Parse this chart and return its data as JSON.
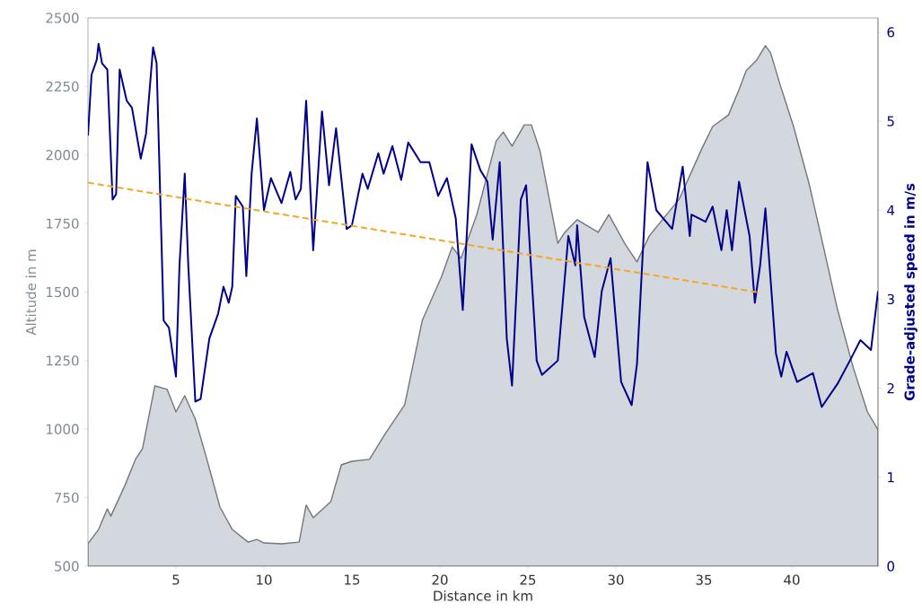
{
  "chart_data": {
    "type": "area",
    "xlabel": "Distance in km",
    "ylabel": "Altitude in m",
    "y2label": "Grade-adjusted speed in m/s",
    "xlim": [
      0,
      44.9
    ],
    "xticks": [
      5,
      10,
      15,
      20,
      25,
      30,
      35,
      40
    ],
    "ylim": [
      500,
      2500
    ],
    "yticks": [
      500,
      750,
      1000,
      1250,
      1500,
      1750,
      2000,
      2250,
      2500
    ],
    "y2lim": [
      0,
      6.16
    ],
    "y2ticks": [
      0,
      1,
      2,
      3,
      4,
      5,
      6
    ],
    "series": [
      {
        "color": "#d3d7de",
        "x": [
          0,
          0.6,
          1.1,
          1.3,
          2.1,
          2.7,
          3.1,
          3.8,
          4.5,
          5.0,
          5.5,
          6.1,
          6.7,
          7.5,
          8.2,
          9.1,
          9.6,
          10.0,
          11.0,
          12.0,
          12.4,
          12.8,
          13.8,
          14.4,
          15.0,
          16.0,
          16.9,
          18.0,
          19.0,
          20.1,
          20.7,
          21.2,
          22.1,
          23.2,
          23.6,
          24.1,
          24.8,
          25.2,
          25.7,
          26.7,
          27.1,
          27.8,
          29.0,
          29.6,
          30.5,
          31.2,
          31.9,
          33.6,
          34.9,
          35.5,
          36.4,
          37.0,
          37.4,
          38.0,
          38.5,
          38.8,
          39.3,
          40.1,
          41.0,
          41.8,
          42.6,
          43.5,
          44.3,
          44.9
        ],
        "values": [
          582,
          634,
          709,
          683,
          795,
          890,
          929,
          1158,
          1145,
          1063,
          1122,
          1037,
          903,
          716,
          634,
          588,
          598,
          585,
          582,
          588,
          723,
          677,
          736,
          870,
          883,
          890,
          984,
          1089,
          1397,
          1557,
          1665,
          1623,
          1783,
          2051,
          2084,
          2032,
          2110,
          2110,
          2012,
          1678,
          1718,
          1764,
          1718,
          1783,
          1678,
          1610,
          1705,
          1839,
          2025,
          2104,
          2146,
          2238,
          2307,
          2346,
          2399,
          2372,
          2264,
          2104,
          1891,
          1665,
          1436,
          1223,
          1063,
          998
        ]
      },
      {
        "type": "line",
        "axis": "y2",
        "color": "#00008b",
        "x": [
          0,
          0.2,
          0.5,
          0.6,
          0.8,
          1.1,
          1.4,
          1.6,
          1.8,
          2.2,
          2.5,
          3.0,
          3.3,
          3.7,
          3.9,
          4.3,
          4.6,
          5.0,
          5.2,
          5.5,
          5.7,
          6.1,
          6.4,
          6.9,
          7.4,
          7.7,
          8.0,
          8.2,
          8.4,
          8.8,
          9.0,
          9.3,
          9.6,
          10.0,
          10.4,
          11.0,
          11.5,
          11.8,
          12.1,
          12.4,
          12.8,
          13.3,
          13.7,
          14.1,
          14.7,
          15.0,
          15.6,
          15.9,
          16.5,
          16.8,
          17.3,
          17.8,
          18.2,
          18.9,
          19.4,
          19.9,
          20.4,
          20.9,
          21.3,
          21.8,
          22.3,
          22.7,
          23.0,
          23.4,
          23.8,
          24.1,
          24.6,
          24.9,
          25.5,
          25.8,
          26.7,
          27.3,
          27.7,
          27.8,
          28.2,
          28.8,
          29.2,
          29.7,
          30.3,
          30.9,
          31.2,
          31.8,
          32.3,
          33.2,
          33.8,
          34.2,
          34.3,
          35.1,
          35.5,
          36.0,
          36.3,
          36.6,
          37.0,
          37.6,
          37.9,
          38.2,
          38.5,
          39.1,
          39.4,
          39.7,
          40.3,
          41.2,
          41.7,
          42.6,
          43.3,
          43.9,
          44.5,
          44.9
        ],
        "values": [
          4.84,
          5.52,
          5.69,
          5.87,
          5.65,
          5.58,
          4.12,
          4.18,
          5.58,
          5.23,
          5.15,
          4.58,
          4.86,
          5.83,
          5.65,
          2.76,
          2.68,
          2.13,
          3.38,
          4.41,
          3.38,
          1.85,
          1.88,
          2.56,
          2.84,
          3.14,
          2.96,
          3.14,
          4.16,
          4.04,
          3.26,
          4.41,
          5.03,
          4.0,
          4.36,
          4.08,
          4.43,
          4.12,
          4.24,
          5.23,
          3.55,
          5.11,
          4.28,
          4.92,
          3.79,
          3.83,
          4.41,
          4.24,
          4.64,
          4.41,
          4.72,
          4.34,
          4.76,
          4.54,
          4.54,
          4.16,
          4.36,
          3.91,
          2.88,
          4.74,
          4.45,
          4.32,
          3.67,
          4.54,
          2.56,
          2.03,
          4.12,
          4.28,
          2.31,
          2.15,
          2.31,
          3.71,
          3.38,
          3.83,
          2.8,
          2.35,
          3.09,
          3.46,
          2.07,
          1.81,
          2.27,
          4.54,
          4.0,
          3.79,
          4.49,
          3.71,
          3.95,
          3.87,
          4.04,
          3.55,
          4.0,
          3.55,
          4.32,
          3.71,
          2.96,
          3.38,
          4.02,
          2.39,
          2.13,
          2.41,
          2.07,
          2.17,
          1.79,
          2.05,
          2.31,
          2.54,
          2.43,
          3.09
        ]
      },
      {
        "type": "line",
        "axis": "y2",
        "color": "#f5a623",
        "line_style": "dashed",
        "x": [
          0,
          38
        ],
        "values": [
          4.31,
          3.08
        ]
      }
    ]
  }
}
